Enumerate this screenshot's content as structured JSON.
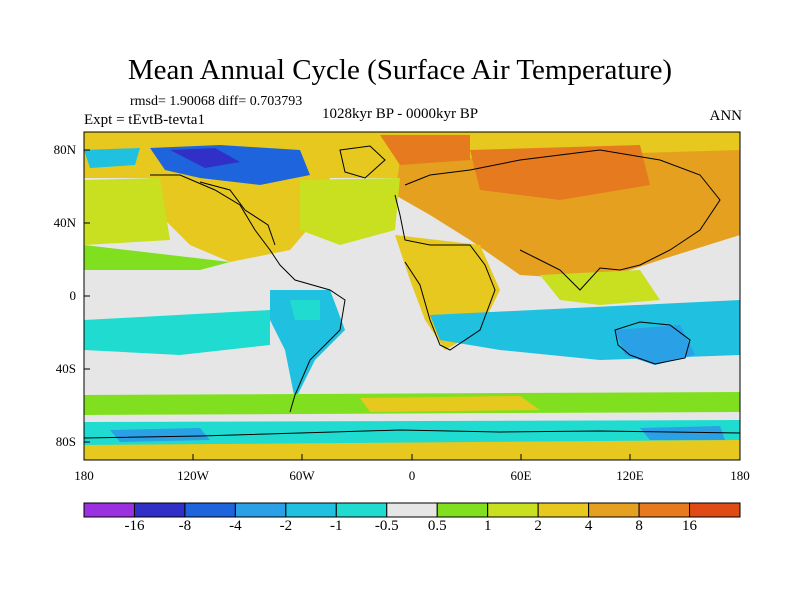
{
  "title": "Mean Annual Cycle (Surface Air Temperature)",
  "stats": "rmsd= 1.90068 diff= 0.703793",
  "period": "1028kyr BP - 0000kyr BP",
  "experiment": "Expt = tEvtB-tevta1",
  "season": "ANN",
  "lat_ticks": [
    "80N",
    "40N",
    "0",
    "40S",
    "80S"
  ],
  "lon_ticks": [
    "180",
    "120W",
    "60W",
    "0",
    "60E",
    "120E",
    "180"
  ],
  "colorbar": {
    "labels": [
      "-16",
      "-8",
      "-4",
      "-2",
      "-1",
      "-0.5",
      "0.5",
      "1",
      "2",
      "4",
      "8",
      "16"
    ],
    "colors": [
      "#9b30e0",
      "#3030c8",
      "#1e64dc",
      "#2aa0e6",
      "#20c0e0",
      "#20dcd0",
      "#e6e6e6",
      "#80e020",
      "#c8e020",
      "#e6c81e",
      "#e6a020",
      "#e67a1e",
      "#e04a14"
    ]
  }
}
